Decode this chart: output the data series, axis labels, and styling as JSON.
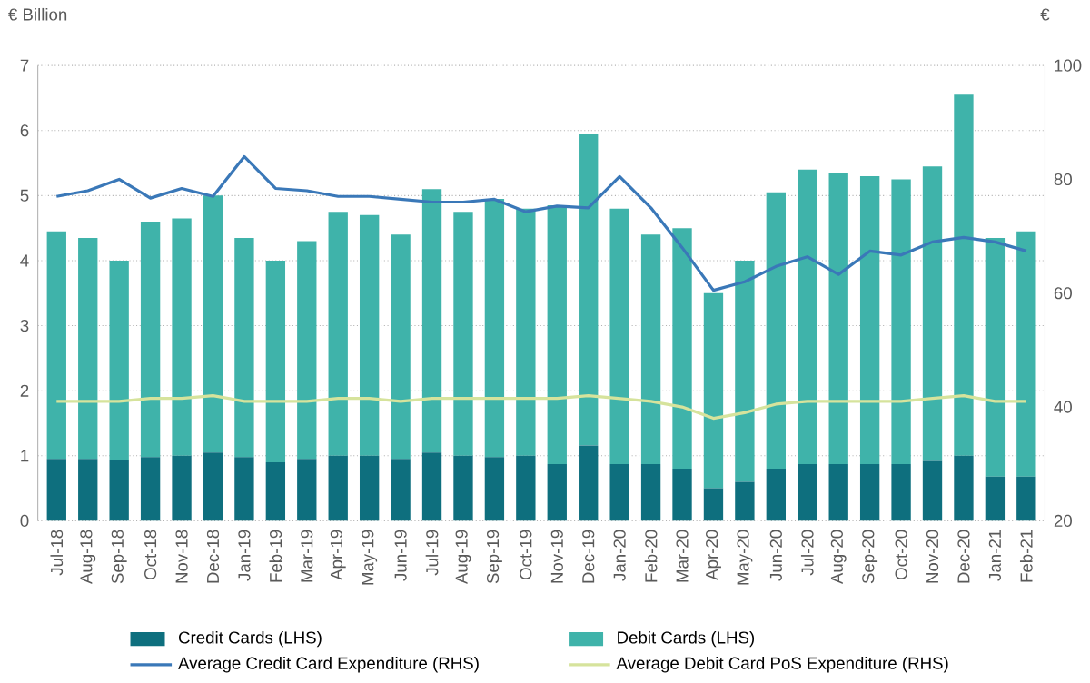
{
  "chart_data": {
    "type": "bar",
    "stacked": true,
    "ylabel": "€ Billion",
    "y2label": "€",
    "categories": [
      "Jul-18",
      "Aug-18",
      "Sep-18",
      "Oct-18",
      "Nov-18",
      "Dec-18",
      "Jan-19",
      "Feb-19",
      "Mar-19",
      "Apr-19",
      "May-19",
      "Jun-19",
      "Jul-19",
      "Aug-19",
      "Sep-19",
      "Oct-19",
      "Nov-19",
      "Dec-19",
      "Jan-20",
      "Feb-20",
      "Mar-20",
      "Apr-20",
      "May-20",
      "Jun-20",
      "Jul-20",
      "Aug-20",
      "Sep-20",
      "Oct-20",
      "Nov-20",
      "Dec-20",
      "Jan-21",
      "Feb-21"
    ],
    "series": [
      {
        "name": "Credit Cards (LHS)",
        "color": "#0e6f7e",
        "values": [
          0.95,
          0.95,
          0.93,
          0.98,
          1.0,
          1.05,
          0.98,
          0.9,
          0.95,
          1.0,
          1.0,
          0.95,
          1.05,
          1.0,
          0.98,
          1.0,
          0.87,
          1.16,
          0.87,
          0.87,
          0.8,
          0.5,
          0.6,
          0.8,
          0.87,
          0.87,
          0.87,
          0.87,
          0.92,
          1.0,
          0.68,
          0.68
        ]
      },
      {
        "name": "Debit Cards (LHS)",
        "color": "#3fb3aa",
        "values": [
          3.5,
          3.4,
          3.07,
          3.62,
          3.65,
          3.95,
          3.37,
          3.1,
          3.35,
          3.75,
          3.7,
          3.45,
          4.05,
          3.75,
          3.97,
          3.8,
          3.98,
          4.79,
          3.93,
          3.53,
          3.7,
          3.0,
          3.4,
          4.25,
          4.53,
          4.48,
          4.43,
          4.38,
          4.53,
          5.55,
          3.67,
          3.77
        ]
      },
      {
        "name": "Average Credit Card Expenditure (RHS)",
        "type": "line",
        "axis": "y2",
        "color": "#3a78b8",
        "values": [
          77,
          78,
          80,
          76.7,
          78.4,
          77,
          84,
          78.4,
          78,
          77,
          77,
          76.5,
          76,
          76,
          76.5,
          74.3,
          75.3,
          75,
          80.5,
          75,
          68,
          60.5,
          62,
          64.7,
          66.4,
          63.3,
          67.4,
          66.7,
          69,
          69.8,
          69,
          67.4
        ]
      },
      {
        "name": "Average Debit Card PoS Expenditure (RHS)",
        "type": "line",
        "axis": "y2",
        "color": "#d6e39c",
        "values": [
          41,
          41,
          41,
          41.5,
          41.5,
          42,
          41,
          41,
          41,
          41.5,
          41.5,
          41,
          41.5,
          41.5,
          41.5,
          41.5,
          41.5,
          42,
          41.5,
          41,
          40,
          38,
          39,
          40.5,
          41,
          41,
          41,
          41,
          41.5,
          42,
          41,
          41
        ]
      }
    ],
    "ylim": [
      0,
      7
    ],
    "yticks": [
      0,
      1,
      2,
      3,
      4,
      5,
      6,
      7
    ],
    "y2lim": [
      20,
      100
    ],
    "y2ticks": [
      20,
      40,
      60,
      80,
      100
    ],
    "grid": "y",
    "legend": "bottom"
  }
}
